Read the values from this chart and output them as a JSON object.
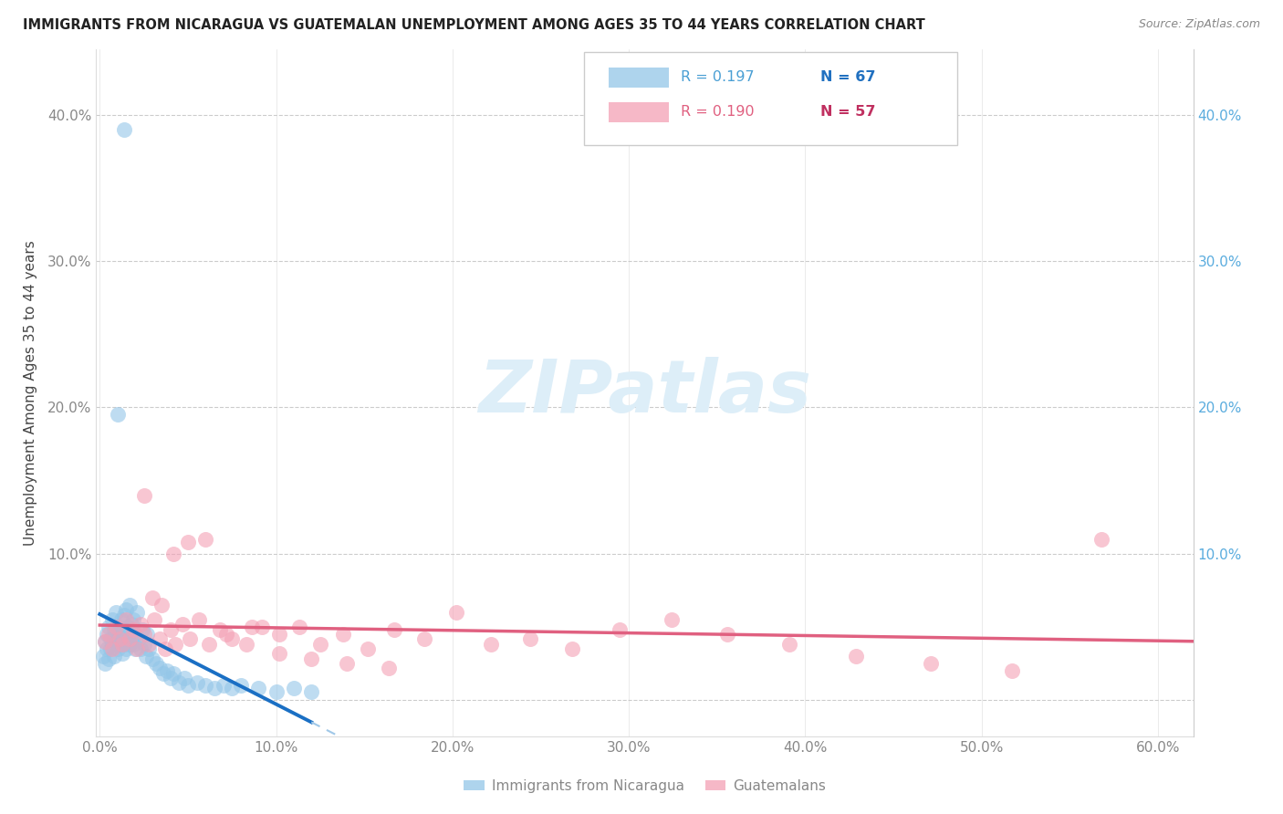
{
  "title": "IMMIGRANTS FROM NICARAGUA VS GUATEMALAN UNEMPLOYMENT AMONG AGES 35 TO 44 YEARS CORRELATION CHART",
  "source": "Source: ZipAtlas.com",
  "ylabel": "Unemployment Among Ages 35 to 44 years",
  "xlim": [
    -0.002,
    0.62
  ],
  "ylim": [
    -0.025,
    0.445
  ],
  "xticks": [
    0.0,
    0.1,
    0.2,
    0.3,
    0.4,
    0.5,
    0.6
  ],
  "yticks": [
    0.0,
    0.1,
    0.2,
    0.3,
    0.4
  ],
  "xtick_labels": [
    "0.0%",
    "10.0%",
    "20.0%",
    "30.0%",
    "40.0%",
    "50.0%",
    "60.0%"
  ],
  "ytick_labels_left": [
    "",
    "10.0%",
    "20.0%",
    "30.0%",
    "40.0%"
  ],
  "ytick_labels_right": [
    "",
    "10.0%",
    "20.0%",
    "30.0%",
    "40.0%"
  ],
  "r_nicaragua": "0.197",
  "n_nicaragua": "67",
  "r_guatemala": "0.190",
  "n_guatemala": "57",
  "nicaragua_color": "#93c6e8",
  "guatemala_color": "#f4a0b5",
  "trendline_nicaragua_solid_color": "#1a6fc4",
  "trendline_nicaragua_dash_color": "#a0c8e8",
  "trendline_guatemala_color": "#e06080",
  "watermark_text": "ZIPatlas",
  "watermark_color": "#ddeef8",
  "bottom_legend_nicaragua": "Immigrants from Nicaragua",
  "bottom_legend_guatemala": "Guatemalans",
  "nicaragua_x": [
    0.002,
    0.003,
    0.003,
    0.004,
    0.004,
    0.005,
    0.005,
    0.006,
    0.006,
    0.007,
    0.007,
    0.008,
    0.008,
    0.009,
    0.009,
    0.01,
    0.01,
    0.011,
    0.011,
    0.012,
    0.012,
    0.013,
    0.013,
    0.014,
    0.014,
    0.015,
    0.015,
    0.016,
    0.016,
    0.017,
    0.017,
    0.018,
    0.018,
    0.019,
    0.019,
    0.02,
    0.02,
    0.021,
    0.022,
    0.023,
    0.024,
    0.025,
    0.026,
    0.027,
    0.028,
    0.03,
    0.032,
    0.034,
    0.036,
    0.038,
    0.04,
    0.042,
    0.045,
    0.048,
    0.05,
    0.055,
    0.06,
    0.065,
    0.07,
    0.075,
    0.08,
    0.09,
    0.1,
    0.11,
    0.12,
    0.014,
    0.01
  ],
  "nicaragua_y": [
    0.03,
    0.025,
    0.04,
    0.035,
    0.045,
    0.028,
    0.05,
    0.035,
    0.042,
    0.038,
    0.055,
    0.03,
    0.048,
    0.04,
    0.06,
    0.035,
    0.045,
    0.05,
    0.038,
    0.042,
    0.055,
    0.032,
    0.048,
    0.058,
    0.038,
    0.035,
    0.062,
    0.045,
    0.05,
    0.038,
    0.065,
    0.042,
    0.052,
    0.038,
    0.055,
    0.045,
    0.035,
    0.06,
    0.042,
    0.035,
    0.048,
    0.038,
    0.03,
    0.045,
    0.035,
    0.028,
    0.025,
    0.022,
    0.018,
    0.02,
    0.015,
    0.018,
    0.012,
    0.015,
    0.01,
    0.012,
    0.01,
    0.008,
    0.01,
    0.008,
    0.01,
    0.008,
    0.006,
    0.008,
    0.006,
    0.39,
    0.195
  ],
  "guatemala_x": [
    0.003,
    0.005,
    0.007,
    0.009,
    0.011,
    0.013,
    0.015,
    0.017,
    0.019,
    0.021,
    0.023,
    0.025,
    0.028,
    0.031,
    0.034,
    0.037,
    0.04,
    0.043,
    0.047,
    0.051,
    0.056,
    0.062,
    0.068,
    0.075,
    0.083,
    0.092,
    0.102,
    0.113,
    0.125,
    0.138,
    0.152,
    0.167,
    0.184,
    0.202,
    0.222,
    0.244,
    0.268,
    0.295,
    0.324,
    0.356,
    0.391,
    0.429,
    0.471,
    0.517,
    0.568,
    0.025,
    0.03,
    0.035,
    0.042,
    0.05,
    0.06,
    0.072,
    0.086,
    0.102,
    0.12,
    0.14,
    0.164
  ],
  "guatemala_y": [
    0.04,
    0.045,
    0.035,
    0.05,
    0.042,
    0.038,
    0.055,
    0.042,
    0.048,
    0.035,
    0.052,
    0.045,
    0.038,
    0.055,
    0.042,
    0.035,
    0.048,
    0.038,
    0.052,
    0.042,
    0.055,
    0.038,
    0.048,
    0.042,
    0.038,
    0.05,
    0.045,
    0.05,
    0.038,
    0.045,
    0.035,
    0.048,
    0.042,
    0.06,
    0.038,
    0.042,
    0.035,
    0.048,
    0.055,
    0.045,
    0.038,
    0.03,
    0.025,
    0.02,
    0.11,
    0.14,
    0.07,
    0.065,
    0.1,
    0.108,
    0.11,
    0.045,
    0.05,
    0.032,
    0.028,
    0.025,
    0.022
  ]
}
